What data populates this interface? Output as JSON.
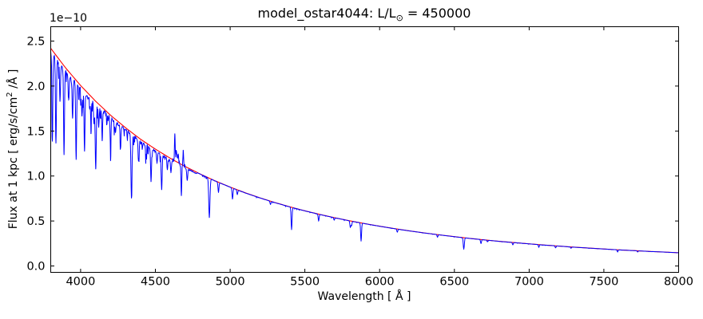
{
  "figure": {
    "title_prefix": "model_ostar4044: L/L",
    "title_sun": "⊙",
    "title_suffix": " = 450000",
    "offset_text": "1e−10",
    "xlabel": "Wavelength [ Å ]",
    "ylabel_prefix": "Flux at 1 kpc [ erg/s/cm",
    "ylabel_sup": "2",
    "ylabel_suffix": " /Å ]"
  },
  "chart_data": {
    "type": "line",
    "title": "model_ostar4044: L/L⊙ = 450000",
    "xlabel": "Wavelength [ Å ]",
    "ylabel": "Flux at 1 kpc [ erg/s/cm2 /Å ]",
    "y_offset_factor": "1e-10",
    "xlim": [
      3800,
      8000
    ],
    "ylim": [
      -0.071,
      2.66
    ],
    "x_ticks": [
      4000,
      4500,
      5000,
      5500,
      6000,
      6500,
      7000,
      7500,
      8000
    ],
    "y_ticks": [
      "0.0",
      "0.5",
      "1.0",
      "1.5",
      "2.0",
      "2.5"
    ],
    "grid": false,
    "legend": null,
    "frame_color": "#000000",
    "series": [
      {
        "name": "continuum_model",
        "color": "#ff0000",
        "points": [
          [
            3800,
            2.42
          ],
          [
            3900,
            2.201
          ],
          [
            4000,
            2.006
          ],
          [
            4100,
            1.832
          ],
          [
            4200,
            1.676
          ],
          [
            4300,
            1.537
          ],
          [
            4400,
            1.41
          ],
          [
            4500,
            1.299
          ],
          [
            4600,
            1.197
          ],
          [
            4700,
            1.105
          ],
          [
            4800,
            1.022
          ],
          [
            4900,
            0.946
          ],
          [
            5000,
            0.877
          ],
          [
            5100,
            0.814
          ],
          [
            5200,
            0.757
          ],
          [
            5300,
            0.705
          ],
          [
            5400,
            0.657
          ],
          [
            5500,
            0.613
          ],
          [
            5600,
            0.573
          ],
          [
            5700,
            0.536
          ],
          [
            5800,
            0.502
          ],
          [
            5900,
            0.471
          ],
          [
            6000,
            0.442
          ],
          [
            6100,
            0.415
          ],
          [
            6200,
            0.39
          ],
          [
            6300,
            0.367
          ],
          [
            6400,
            0.346
          ],
          [
            6500,
            0.326
          ],
          [
            6600,
            0.307
          ],
          [
            6700,
            0.29
          ],
          [
            6800,
            0.274
          ],
          [
            6900,
            0.26
          ],
          [
            7000,
            0.246
          ],
          [
            7100,
            0.233
          ],
          [
            7200,
            0.221
          ],
          [
            7300,
            0.209
          ],
          [
            7400,
            0.199
          ],
          [
            7500,
            0.189
          ],
          [
            7600,
            0.179
          ],
          [
            7700,
            0.171
          ],
          [
            7800,
            0.162
          ],
          [
            7900,
            0.155
          ],
          [
            8000,
            0.147
          ]
        ]
      },
      {
        "name": "spectrum",
        "color": "#0000ff",
        "continuum_ref": "continuum_model",
        "absorption_lines": [
          [
            3811,
            0.36,
            3
          ],
          [
            3835,
            0.4,
            3
          ],
          [
            3862,
            0.18,
            3
          ],
          [
            3889,
            0.42,
            3
          ],
          [
            3920,
            0.13,
            3
          ],
          [
            3946,
            0.2,
            3
          ],
          [
            3970,
            0.42,
            3
          ],
          [
            4009,
            0.15,
            3
          ],
          [
            4026,
            0.32,
            3
          ],
          [
            4069,
            0.12,
            3
          ],
          [
            4089,
            0.12,
            3
          ],
          [
            4101,
            0.4,
            3.5
          ],
          [
            4121,
            0.12,
            3
          ],
          [
            4144,
            0.16,
            3
          ],
          [
            4200,
            0.2,
            3
          ],
          [
            4233,
            0.08,
            3
          ],
          [
            4267,
            0.1,
            3
          ],
          [
            4340,
            0.48,
            3.5
          ],
          [
            4387,
            0.16,
            3
          ],
          [
            4437,
            0.08,
            3
          ],
          [
            4471,
            0.28,
            3
          ],
          [
            4511,
            0.1,
            3
          ],
          [
            4542,
            0.3,
            3
          ],
          [
            4580,
            0.1,
            3
          ],
          [
            4604,
            0.12,
            3
          ],
          [
            4674,
            0.3,
            2.5
          ],
          [
            4713,
            0.12,
            3
          ],
          [
            4861,
            0.45,
            4
          ],
          [
            4922,
            0.12,
            3
          ],
          [
            5016,
            0.14,
            3
          ],
          [
            5048,
            0.06,
            3
          ],
          [
            5270,
            0.05,
            3
          ],
          [
            5411,
            0.38,
            3
          ],
          [
            5592,
            0.13,
            3
          ],
          [
            5696,
            0.05,
            3
          ],
          [
            5804,
            0.14,
            3
          ],
          [
            5812,
            0.1,
            3
          ],
          [
            5876,
            0.42,
            3
          ],
          [
            6118,
            0.08,
            3
          ],
          [
            6387,
            0.08,
            3
          ],
          [
            6563,
            0.4,
            3.5
          ],
          [
            6678,
            0.15,
            3
          ],
          [
            6721,
            0.06,
            3
          ],
          [
            6891,
            0.1,
            3
          ],
          [
            7065,
            0.12,
            3
          ],
          [
            7177,
            0.1,
            3
          ],
          [
            7281,
            0.06,
            3
          ],
          [
            7592,
            0.12,
            3
          ],
          [
            7726,
            0.08,
            3
          ]
        ],
        "emission_lines": [
          [
            4630,
            0.26,
            2.5
          ],
          [
            4641,
            0.12,
            3
          ],
          [
            4652,
            0.08,
            3
          ],
          [
            4686,
            0.14,
            2.5
          ]
        ],
        "noise_bands": [
          {
            "range": [
              3800,
              4560
            ],
            "style": "dense-weak-absorption",
            "amp": 0.1
          },
          {
            "range": [
              4560,
              4780
            ],
            "style": "bipolar-jitter",
            "amp": 0.06
          },
          {
            "range": [
              4780,
              8000
            ],
            "style": "faint-absorption",
            "amp": 0.02
          }
        ]
      }
    ]
  }
}
